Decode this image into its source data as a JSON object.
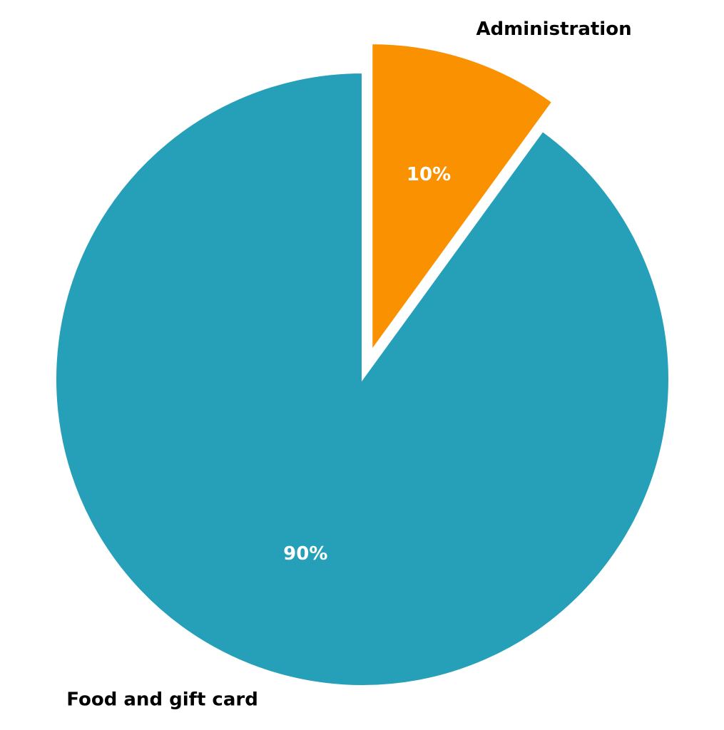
{
  "chart_data": {
    "type": "pie",
    "categories": [
      "Food and gift card",
      "Administration"
    ],
    "values": [
      90,
      10
    ],
    "value_labels": [
      "90%",
      "10%"
    ],
    "colors": [
      "#26a0b9",
      "#fa9100"
    ],
    "explode": [
      0,
      0.1
    ],
    "startangle": 90
  }
}
